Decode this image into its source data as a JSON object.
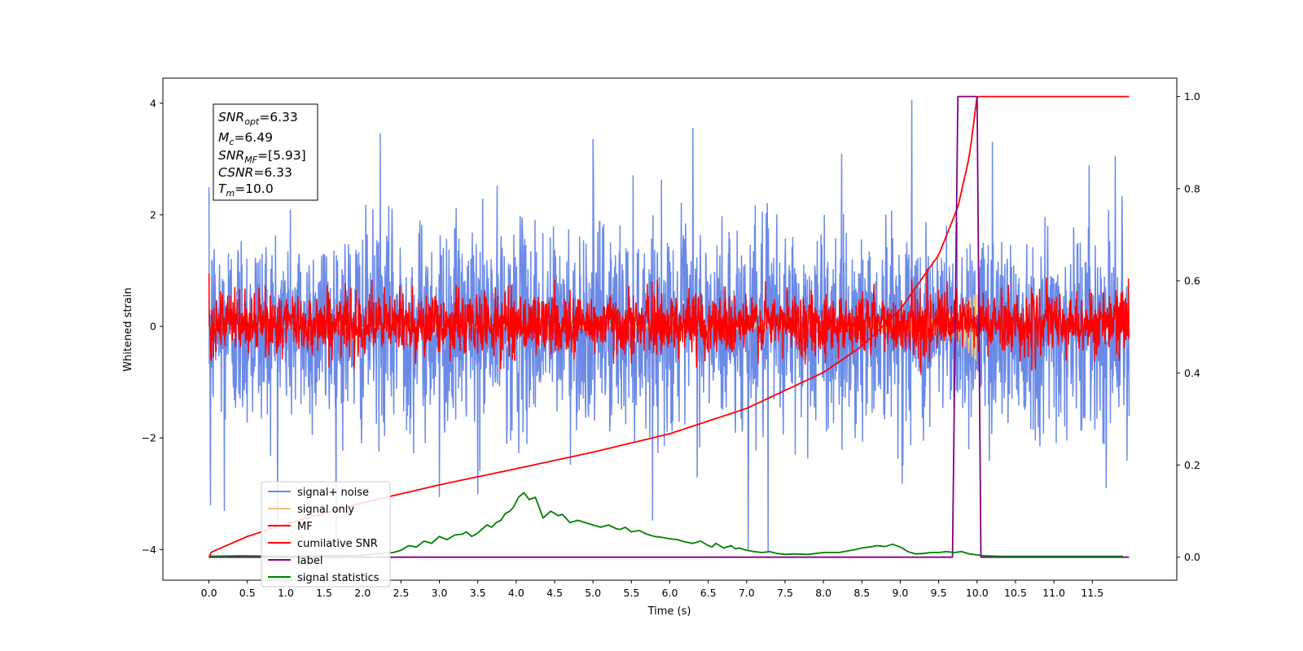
{
  "chart_data": {
    "type": "line",
    "xlabel": "Time (s)",
    "ylabel": "Whitened strain",
    "xlim": [
      -0.6,
      12.6
    ],
    "ylim": [
      -4.55,
      4.45
    ],
    "y2lim": [
      -0.05,
      1.04
    ],
    "x_ticks": [
      0.0,
      0.5,
      1.0,
      1.5,
      2.0,
      2.5,
      3.0,
      3.5,
      4.0,
      4.5,
      5.0,
      5.5,
      6.0,
      6.5,
      7.0,
      7.5,
      8.0,
      8.5,
      9.0,
      9.5,
      10.0,
      10.5,
      11.0,
      11.5
    ],
    "x_tick_labels": [
      "0.0",
      "0.5",
      "1.0",
      "1.5",
      "2.0",
      "2.5",
      "3.0",
      "3.5",
      "4.0",
      "4.5",
      "5.0",
      "5.5",
      "6.0",
      "6.5",
      "7.0",
      "7.5",
      "8.0",
      "8.5",
      "9.0",
      "9.5",
      "10.0",
      "10.5",
      "11.0",
      "11.5"
    ],
    "y_ticks": [
      -4,
      -2,
      0,
      2,
      4
    ],
    "y_tick_labels": [
      "−4",
      "−2",
      "0",
      "2",
      "4"
    ],
    "y2_ticks": [
      0.0,
      0.2,
      0.4,
      0.6,
      0.8,
      1.0
    ],
    "y2_tick_labels": [
      "0.0",
      "0.2",
      "0.4",
      "0.6",
      "0.8",
      "1.0"
    ],
    "grid": false,
    "legend_position": "lower-left",
    "colors": {
      "signal_noise": "#6a8ae6",
      "signal_only": "#f2c27a",
      "mf": "#ff0000",
      "cumulative_snr": "#ff0000",
      "label": "#800080",
      "signal_statistics": "#008000"
    },
    "series": [
      {
        "name": "signal+ noise",
        "axis": "left",
        "kind": "noisy-band",
        "x_start": 0.0,
        "x_end": 11.98,
        "band": [
          -1.0,
          1.0
        ],
        "extremes": [
          {
            "x": 0.02,
            "y": -3.2
          },
          {
            "x": 0.2,
            "y": -3.3
          },
          {
            "x": 2.23,
            "y": 3.45
          },
          {
            "x": 3.0,
            "y": -3.05
          },
          {
            "x": 3.5,
            "y": -3.0
          },
          {
            "x": 5.0,
            "y": 3.35
          },
          {
            "x": 6.3,
            "y": 3.55
          },
          {
            "x": 7.02,
            "y": -4.0
          },
          {
            "x": 7.28,
            "y": -4.05
          },
          {
            "x": 9.15,
            "y": 4.05
          },
          {
            "x": 10.2,
            "y": 3.3
          },
          {
            "x": 11.8,
            "y": 3.05
          }
        ]
      },
      {
        "name": "signal only",
        "axis": "left",
        "kind": "chirp",
        "x": [
          0.0,
          8.0,
          9.0,
          9.5,
          9.8,
          10.0,
          10.05
        ],
        "amplitude": [
          0.02,
          0.05,
          0.1,
          0.15,
          0.3,
          0.7,
          0.0
        ]
      },
      {
        "name": "MF",
        "axis": "left",
        "kind": "noisy-band",
        "x_start": 0.0,
        "x_end": 11.98,
        "band": [
          -0.25,
          0.35
        ],
        "extremes": [
          {
            "x": 0.0,
            "y": 0.95
          },
          {
            "x": 2.65,
            "y": 0.72
          },
          {
            "x": 11.97,
            "y": 0.85
          }
        ]
      },
      {
        "name": "cumilative SNR",
        "axis": "right",
        "x": [
          0.0,
          0.02,
          0.5,
          1.0,
          2.0,
          3.0,
          4.0,
          5.0,
          6.0,
          7.0,
          8.0,
          8.5,
          9.0,
          9.5,
          9.75,
          9.9,
          10.0,
          11.98
        ],
        "values": [
          0.0,
          0.01,
          0.045,
          0.072,
          0.118,
          0.157,
          0.192,
          0.228,
          0.268,
          0.323,
          0.401,
          0.458,
          0.538,
          0.656,
          0.76,
          0.87,
          1.0,
          1.0
        ]
      },
      {
        "name": "label",
        "axis": "right",
        "x": [
          0.0,
          9.68,
          9.75,
          10.0,
          10.05,
          11.98
        ],
        "values": [
          0.0,
          0.0,
          1.0,
          1.0,
          0.0,
          0.0
        ]
      },
      {
        "name": "signal statistics",
        "axis": "right",
        "x": [
          0.0,
          0.4,
          1.0,
          1.5,
          2.0,
          2.2,
          2.4,
          2.5,
          2.6,
          2.7,
          2.8,
          2.9,
          3.0,
          3.1,
          3.2,
          3.3,
          3.35,
          3.42,
          3.48,
          3.55,
          3.62,
          3.68,
          3.74,
          3.8,
          3.86,
          3.92,
          3.97,
          4.03,
          4.1,
          4.17,
          4.25,
          4.35,
          4.45,
          4.55,
          4.6,
          4.7,
          4.8,
          4.9,
          5.0,
          5.1,
          5.2,
          5.3,
          5.35,
          5.42,
          5.5,
          5.6,
          5.7,
          5.8,
          5.9,
          6.0,
          6.1,
          6.2,
          6.3,
          6.4,
          6.5,
          6.55,
          6.6,
          6.7,
          6.8,
          6.85,
          6.9,
          7.0,
          7.1,
          7.2,
          7.3,
          7.4,
          7.5,
          7.6,
          7.8,
          8.0,
          8.2,
          8.4,
          8.5,
          8.6,
          8.7,
          8.8,
          8.9,
          9.0,
          9.1,
          9.2,
          9.3,
          9.4,
          9.5,
          9.6,
          9.7,
          9.8,
          9.9,
          10.0,
          10.1,
          10.3,
          10.6,
          11.0,
          11.4,
          11.9
        ],
        "values": [
          0.002,
          0.003,
          0.002,
          0.003,
          0.004,
          0.008,
          0.01,
          0.015,
          0.025,
          0.022,
          0.035,
          0.03,
          0.045,
          0.038,
          0.048,
          0.05,
          0.055,
          0.045,
          0.05,
          0.06,
          0.07,
          0.065,
          0.075,
          0.08,
          0.095,
          0.1,
          0.11,
          0.13,
          0.14,
          0.125,
          0.13,
          0.085,
          0.1,
          0.09,
          0.093,
          0.075,
          0.08,
          0.075,
          0.07,
          0.065,
          0.07,
          0.062,
          0.06,
          0.065,
          0.055,
          0.058,
          0.05,
          0.045,
          0.043,
          0.04,
          0.038,
          0.033,
          0.03,
          0.035,
          0.025,
          0.022,
          0.03,
          0.02,
          0.025,
          0.018,
          0.02,
          0.015,
          0.012,
          0.01,
          0.012,
          0.008,
          0.006,
          0.007,
          0.006,
          0.01,
          0.01,
          0.016,
          0.02,
          0.022,
          0.025,
          0.023,
          0.028,
          0.022,
          0.012,
          0.007,
          0.008,
          0.01,
          0.01,
          0.012,
          0.01,
          0.012,
          0.007,
          0.005,
          0.003,
          0.002,
          0.002,
          0.002,
          0.002,
          0.002
        ]
      }
    ]
  },
  "stats_box": {
    "snr_opt": {
      "name": "SNR",
      "sub": "opt",
      "value": "=6.33"
    },
    "mc": {
      "name": "M",
      "sub": "c",
      "value": "=6.49"
    },
    "snr_mf": {
      "name": "SNR",
      "sub": "MF",
      "value": "=[5.93]"
    },
    "csnr": {
      "name": "CSNR",
      "value": "=6.33"
    },
    "tm": {
      "name": "T",
      "sub": "m",
      "value": "=10.0"
    }
  },
  "legend": {
    "items": [
      {
        "label": "signal+ noise",
        "color": "#6a8ae6"
      },
      {
        "label": "signal only",
        "color": "#f2c27a"
      },
      {
        "label": "MF",
        "color": "#ff0000"
      },
      {
        "label": "cumilative SNR",
        "color": "#ff0000"
      },
      {
        "label": "label",
        "color": "#800080"
      },
      {
        "label": "signal statistics",
        "color": "#008000"
      }
    ]
  }
}
